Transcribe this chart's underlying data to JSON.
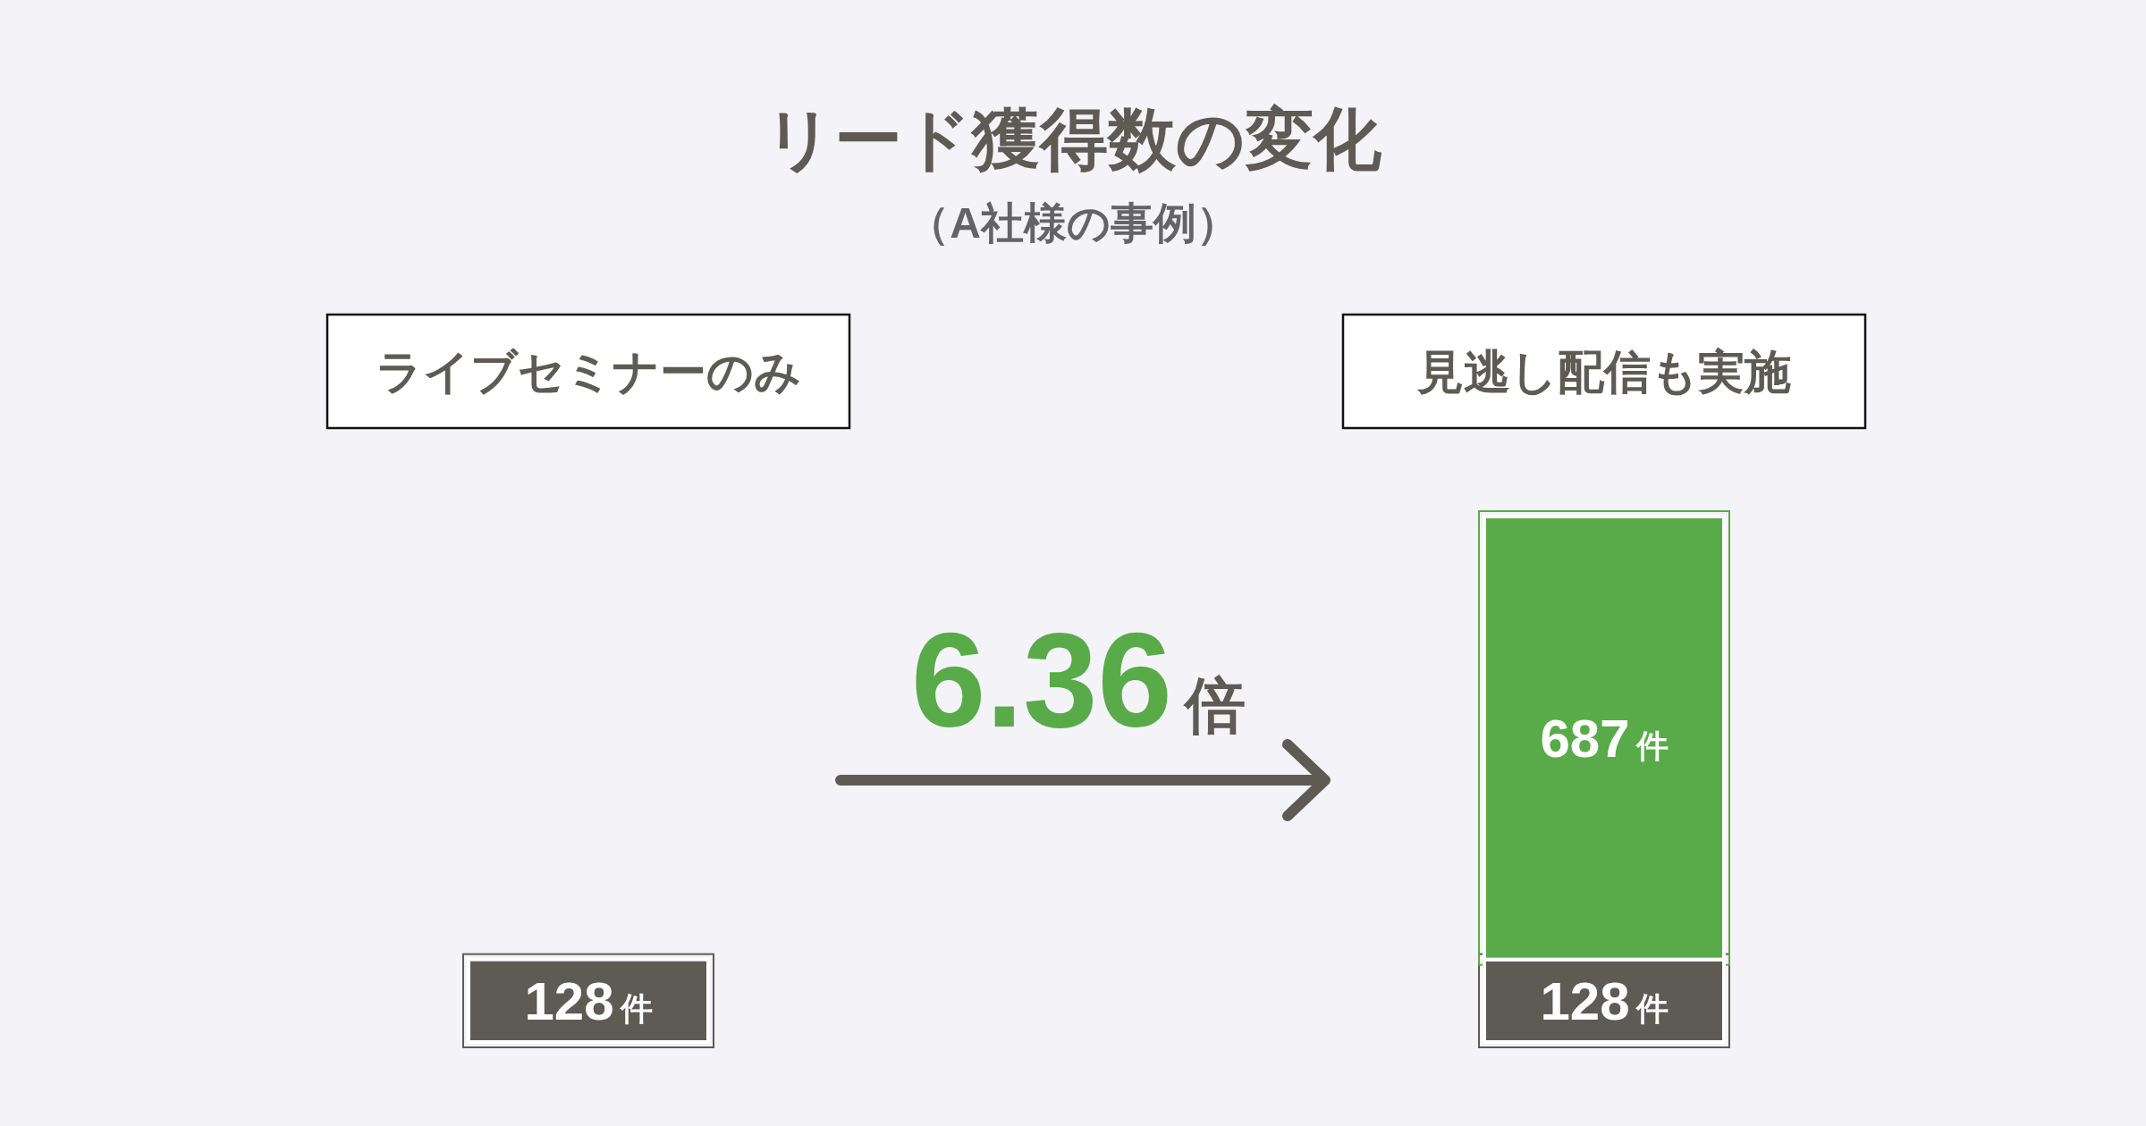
{
  "chart_data": {
    "type": "bar",
    "title": "リード獲得数の変化",
    "subtitle": "（A社様の事例）",
    "categories": [
      "ライブセミナーのみ",
      "見逃し配信も実施"
    ],
    "stacked": true,
    "series": [
      {
        "color": "#5e5b54",
        "values": [
          128,
          128
        ],
        "value_labels": [
          "128件",
          "128件"
        ]
      },
      {
        "color": "#58ab48",
        "values": [
          null,
          687
        ],
        "value_labels": [
          null,
          "687件"
        ]
      }
    ],
    "annotations": [
      "6.36倍"
    ]
  }
}
